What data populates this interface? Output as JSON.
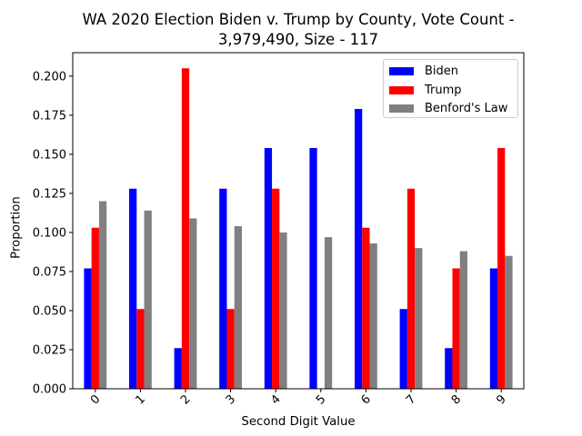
{
  "chart_data": {
    "type": "bar",
    "title_line1": "WA 2020 Election Biden v. Trump by County, Vote Count -",
    "title_line2": "3,979,490, Size - 117",
    "xlabel": "Second Digit Value",
    "ylabel": "Proportion",
    "categories": [
      "0",
      "1",
      "2",
      "3",
      "4",
      "5",
      "6",
      "7",
      "8",
      "9"
    ],
    "ylim": [
      0,
      0.215
    ],
    "yticks": [
      "0.000",
      "0.025",
      "0.050",
      "0.075",
      "0.100",
      "0.125",
      "0.150",
      "0.175",
      "0.200"
    ],
    "legend_position": "top-right",
    "series": [
      {
        "name": "Biden",
        "color": "#0000ff",
        "values": [
          0.077,
          0.128,
          0.026,
          0.128,
          0.154,
          0.154,
          0.179,
          0.051,
          0.026,
          0.077
        ]
      },
      {
        "name": "Trump",
        "color": "#ff0000",
        "values": [
          0.103,
          0.051,
          0.205,
          0.051,
          0.128,
          0.0,
          0.103,
          0.128,
          0.077,
          0.154
        ]
      },
      {
        "name": "Benford's Law",
        "color": "#808080",
        "values": [
          0.12,
          0.114,
          0.109,
          0.104,
          0.1,
          0.097,
          0.093,
          0.09,
          0.088,
          0.085
        ]
      }
    ]
  }
}
